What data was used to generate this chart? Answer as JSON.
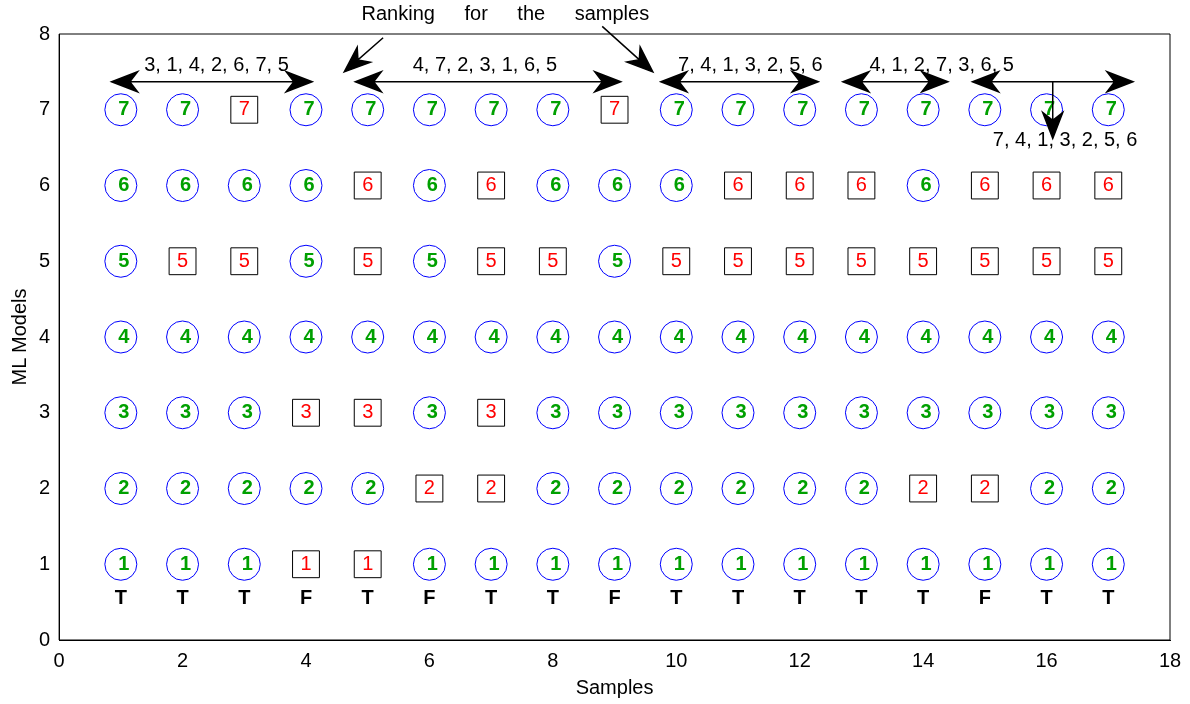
{
  "chart_data": {
    "type": "scatter",
    "xlabel": "Samples",
    "ylabel": "ML Models",
    "xlim": [
      0,
      18
    ],
    "xticks": [
      0,
      2,
      4,
      6,
      8,
      10,
      12,
      14,
      16,
      18
    ],
    "ylim": [
      0,
      8
    ],
    "yticks": [
      0,
      1,
      2,
      3,
      4,
      5,
      6,
      7,
      8
    ],
    "grid": false,
    "legend": false,
    "data_labels": true,
    "series": [
      {
        "marker": "circle",
        "color": "#0000ff",
        "x": [
          1,
          1,
          1,
          1,
          1,
          1,
          1,
          2,
          2,
          2,
          2,
          2,
          2,
          3,
          3,
          3,
          3,
          3,
          4,
          4,
          4,
          4,
          4,
          5,
          5,
          5,
          6,
          6,
          6,
          6,
          6,
          6,
          7,
          7,
          7,
          8,
          8,
          8,
          8,
          8,
          8,
          9,
          9,
          9,
          9,
          9,
          9,
          10,
          10,
          10,
          10,
          10,
          10,
          11,
          11,
          11,
          11,
          11,
          12,
          12,
          12,
          12,
          12,
          13,
          13,
          13,
          13,
          13,
          14,
          14,
          14,
          14,
          14,
          15,
          15,
          15,
          15,
          16,
          16,
          16,
          16,
          16,
          17,
          17,
          17,
          17,
          17
        ],
        "values": [
          1,
          2,
          3,
          4,
          5,
          6,
          7,
          1,
          2,
          3,
          4,
          6,
          7,
          1,
          2,
          3,
          4,
          6,
          2,
          4,
          5,
          6,
          7,
          2,
          4,
          7,
          1,
          3,
          4,
          5,
          6,
          7,
          1,
          4,
          7,
          1,
          2,
          3,
          4,
          6,
          7,
          1,
          2,
          3,
          4,
          5,
          6,
          1,
          2,
          3,
          4,
          6,
          7,
          1,
          2,
          3,
          4,
          7,
          1,
          2,
          3,
          4,
          7,
          1,
          2,
          3,
          4,
          7,
          1,
          3,
          4,
          6,
          7,
          1,
          3,
          4,
          7,
          1,
          2,
          3,
          4,
          7,
          1,
          2,
          3,
          4,
          7
        ]
      },
      {
        "marker": "square",
        "color": "#000000",
        "x": [
          2,
          3,
          3,
          4,
          4,
          5,
          5,
          5,
          5,
          6,
          7,
          7,
          7,
          7,
          8,
          9,
          10,
          11,
          11,
          12,
          12,
          13,
          13,
          14,
          14,
          15,
          15,
          15,
          16,
          16,
          17,
          17
        ],
        "values": [
          5,
          5,
          7,
          1,
          3,
          1,
          3,
          5,
          6,
          2,
          2,
          3,
          5,
          6,
          5,
          7,
          5,
          5,
          6,
          5,
          6,
          5,
          6,
          2,
          5,
          2,
          5,
          6,
          5,
          6,
          5,
          6
        ]
      }
    ],
    "annotations": [
      "Ranking for the samples",
      "3, 1, 4, 2, 6, 7, 5",
      "4, 7, 2, 3, 1, 6, 5",
      "7, 4, 1, 3, 2, 5, 6",
      "4, 1, 2, 7, 3, 6, 5",
      "7, 4, 1, 3, 2, 5, 6",
      "T",
      "T",
      "T",
      "F",
      "T",
      "F",
      "T",
      "T",
      "F",
      "T",
      "T",
      "T",
      "T",
      "T",
      "F",
      "T",
      "T"
    ]
  }
}
